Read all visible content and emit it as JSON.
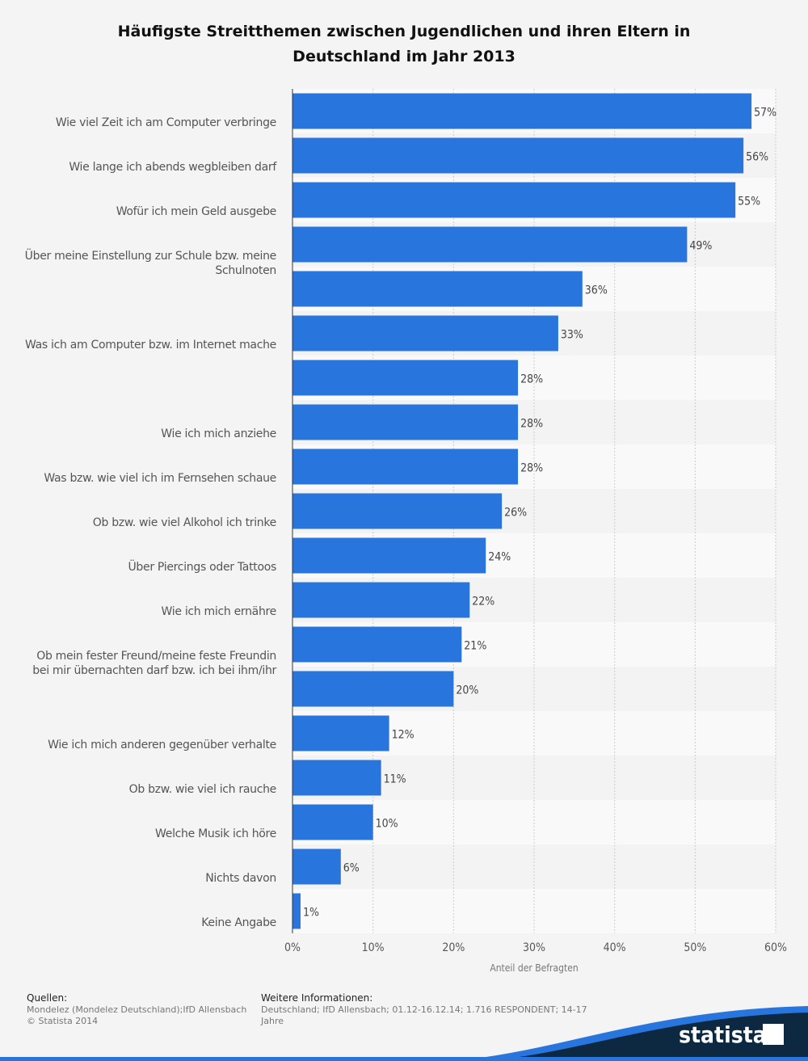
{
  "chart_data": {
    "type": "barh",
    "title": "Häufigste Streitthemen zwischen Jugendlichen und ihren Eltern in Deutschland im Jahr 2013",
    "categories": [
      "Wie viel Zeit ich am Computer verbringe",
      "Wie lange ich abends wegbleiben darf",
      "Wofür ich mein Geld ausgebe",
      "Über meine Einstellung zur Schule bzw. meine Schulnoten",
      null,
      "Was ich am Computer bzw. im Internet mache",
      null,
      "Wie ich mich anziehe",
      "Was bzw. wie viel ich im Fernsehen schaue",
      "Ob bzw. wie viel Alkohol ich trinke",
      "Über Piercings oder Tattoos",
      "Wie ich mich ernähre",
      "Ob mein fester Freund/meine feste Freundin bei mir übernachten darf bzw. ich bei ihm/ihr",
      null,
      "Wie ich mich anderen gegenüber verhalte",
      "Ob bzw. wie viel ich rauche",
      "Welche Musik ich höre",
      "Nichts davon",
      "Keine Angabe"
    ],
    "values": [
      57,
      56,
      55,
      49,
      36,
      33,
      28,
      28,
      28,
      26,
      24,
      22,
      21,
      20,
      12,
      11,
      10,
      6,
      1
    ],
    "value_labels": [
      "57%",
      "56%",
      "55%",
      "49%",
      "36%",
      "33%",
      "28%",
      "28%",
      "28%",
      "26%",
      "24%",
      "22%",
      "21%",
      "20%",
      "12%",
      "11%",
      "10%",
      "6%",
      "1%"
    ],
    "color": "#2876dd",
    "xlabel": "Anteil der Befragten",
    "xlim": [
      0,
      60
    ],
    "xticks": [
      {
        "value": 0,
        "label": "0%"
      },
      {
        "value": 10,
        "label": "10%"
      },
      {
        "value": 20,
        "label": "20%"
      },
      {
        "value": 30,
        "label": "30%"
      },
      {
        "value": 40,
        "label": "40%"
      },
      {
        "value": 50,
        "label": "50%"
      },
      {
        "value": 60,
        "label": "60%"
      }
    ],
    "grid": true
  },
  "footer": {
    "sources_title": "Quellen:",
    "sources": "Mondelez (Mondelez Deutschland);IfD Allensbach",
    "copyright": "© Statista 2014",
    "info_title": "Weitere Informationen:",
    "info": "Deutschland; IfD Allensbach; 01.12-16.12.14; 1.716 RESPONDENT; 14-17 Jahre",
    "logo": "statista"
  }
}
